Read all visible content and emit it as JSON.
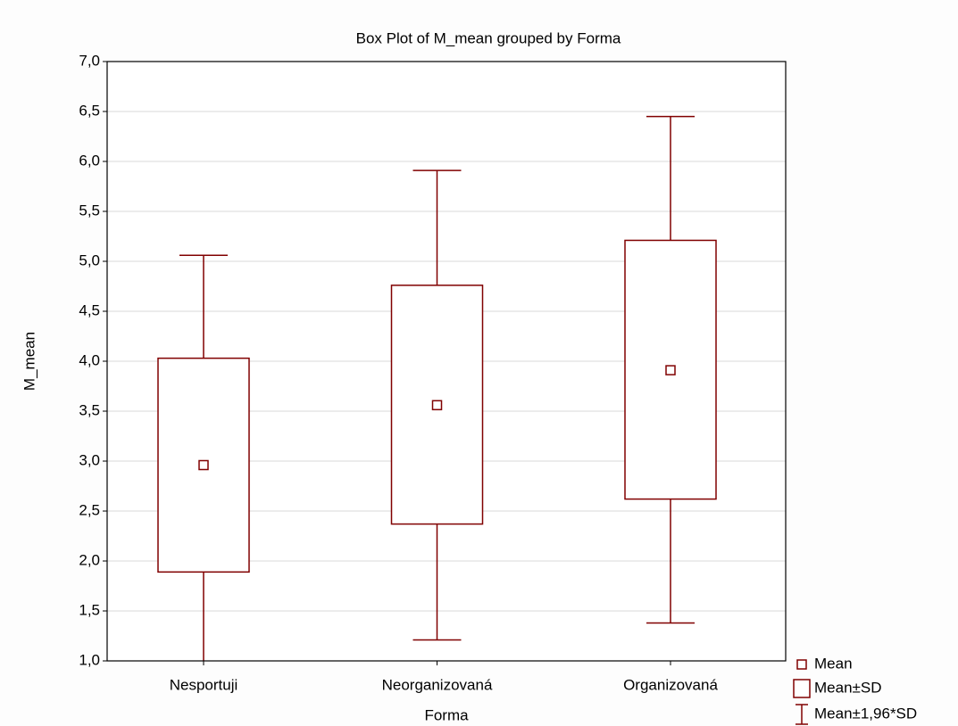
{
  "chart_data": {
    "type": "box",
    "title": "Box Plot of M_mean grouped by  Forma",
    "x_label": "Forma",
    "y_label": "M_mean",
    "categories": [
      "Nesportuji",
      "Neorganizovaná",
      "Organizovaná"
    ],
    "mean": [
      2.96,
      3.56,
      3.91
    ],
    "box_low": [
      1.89,
      2.37,
      2.62
    ],
    "box_high": [
      4.03,
      4.76,
      5.21
    ],
    "whisker_low": [
      0.86,
      1.21,
      1.38
    ],
    "whisker_high": [
      5.06,
      5.91,
      6.45
    ],
    "color": "#800000",
    "ylim": [
      1,
      7
    ],
    "yticks": [
      {
        "value": 1,
        "label": "1,0"
      },
      {
        "value": 1.5,
        "label": "1,5"
      },
      {
        "value": 2,
        "label": "2,0"
      },
      {
        "value": 2.5,
        "label": "2,5"
      },
      {
        "value": 3,
        "label": "3,0"
      },
      {
        "value": 3.5,
        "label": "3,5"
      },
      {
        "value": 4,
        "label": "4,0"
      },
      {
        "value": 4.5,
        "label": "4,5"
      },
      {
        "value": 5,
        "label": "5,0"
      },
      {
        "value": 5.5,
        "label": "5,5"
      },
      {
        "value": 6,
        "label": "6,0"
      },
      {
        "value": 6.5,
        "label": "6,5"
      },
      {
        "value": 7,
        "label": "7,0"
      }
    ],
    "grid": true,
    "legend": [
      "Mean",
      "Mean±SD",
      "Mean±1,96*SD"
    ],
    "legend_position": "bottom right"
  }
}
